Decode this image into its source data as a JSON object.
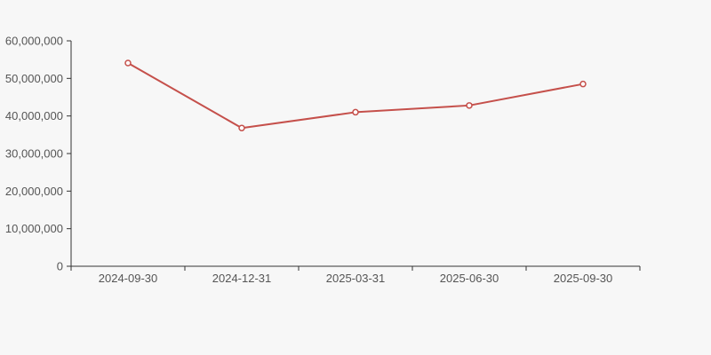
{
  "chart_data": {
    "type": "line",
    "title": "",
    "xlabel": "",
    "ylabel": "",
    "categories": [
      "2024-09-30",
      "2024-12-31",
      "2025-03-31",
      "2025-06-30",
      "2025-09-30"
    ],
    "series": [
      {
        "name": "series-1",
        "values": [
          54100000,
          36800000,
          41000000,
          42800000,
          48500000
        ]
      }
    ],
    "ylim": [
      0,
      60000000
    ],
    "ytick_step": 10000000,
    "ytick_labels": [
      "0",
      "10,000,000",
      "20,000,000",
      "30,000,000",
      "40,000,000",
      "50,000,000",
      "60,000,000"
    ],
    "grid": false,
    "legend": "none",
    "colors": {
      "line": "#c5504b",
      "marker_fill": "#ffffff",
      "axis": "#333333",
      "tick_text": "#555555",
      "background": "#f7f7f7"
    }
  }
}
